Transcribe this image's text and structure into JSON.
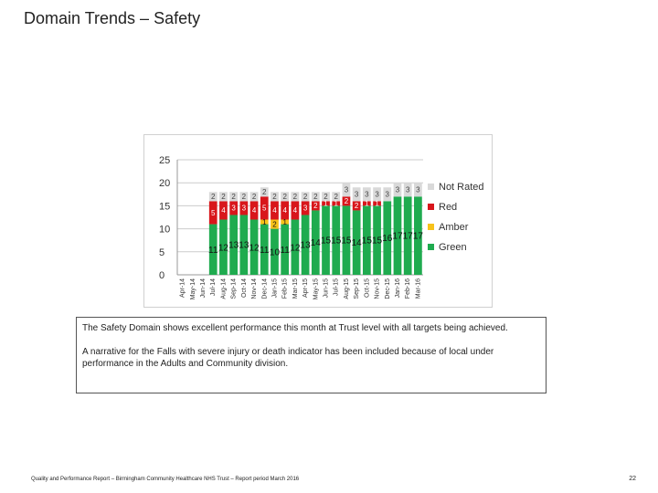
{
  "page": {
    "title": "Domain Trends – Safety",
    "footer": "Quality and Performance Report – Birmingham Community Healthcare NHS Trust – Report period March 2016",
    "page_number": "22"
  },
  "narrative": {
    "paragraph1": "The Safety Domain shows excellent performance this month at Trust level with all targets being achieved.",
    "paragraph2": "A narrative for the Falls with severe injury or death indicator has been included because of local under performance in the Adults and Community division."
  },
  "colors": {
    "green": "#1fab4f",
    "amber": "#f7c21b",
    "red": "#d8161b",
    "not_rated": "#d9d9d9",
    "grid": "#cccccc"
  },
  "chart_data": {
    "type": "bar",
    "stacked": true,
    "title": "",
    "xlabel": "",
    "ylabel": "",
    "ylim": [
      0,
      25
    ],
    "yticks": [
      0,
      5,
      10,
      15,
      20,
      25
    ],
    "grid": true,
    "legend_position": "right",
    "categories": [
      "Apr-14",
      "May-14",
      "Jun-14",
      "Jul-14",
      "Aug-14",
      "Sep-14",
      "Oct-14",
      "Nov-14",
      "Dec-14",
      "Jan-15",
      "Feb-15",
      "Mar-15",
      "Apr-15",
      "May-15",
      "Jun-15",
      "Jul-15",
      "Aug-15",
      "Sep-15",
      "Oct-15",
      "Nov-15",
      "Dec-15",
      "Jan-16",
      "Feb-16",
      "Mar-16"
    ],
    "series": [
      {
        "name": "Green",
        "color_key": "green",
        "values": [
          null,
          null,
          null,
          11,
          12,
          13,
          13,
          12,
          11,
          10,
          11,
          12,
          13,
          14,
          15,
          15,
          15,
          14,
          15,
          15,
          16,
          17,
          17,
          17
        ]
      },
      {
        "name": "Amber",
        "color_key": "amber",
        "values": [
          null,
          null,
          null,
          0,
          0,
          0,
          0,
          0,
          1,
          2,
          1,
          0,
          0,
          0,
          0,
          0,
          0,
          0,
          0,
          0,
          0,
          0,
          0,
          0
        ]
      },
      {
        "name": "Red",
        "color_key": "red",
        "values": [
          null,
          null,
          null,
          5,
          4,
          3,
          3,
          4,
          5,
          4,
          4,
          4,
          3,
          2,
          1,
          1,
          2,
          2,
          1,
          1,
          0,
          0,
          0,
          0
        ]
      },
      {
        "name": "Not Rated",
        "color_key": "not_rated",
        "values": [
          null,
          null,
          null,
          2,
          2,
          2,
          2,
          2,
          2,
          2,
          2,
          2,
          2,
          2,
          2,
          2,
          3,
          3,
          3,
          3,
          3,
          3,
          3,
          3
        ]
      }
    ],
    "legend_order": [
      "Not Rated",
      "Red",
      "Amber",
      "Green"
    ]
  }
}
